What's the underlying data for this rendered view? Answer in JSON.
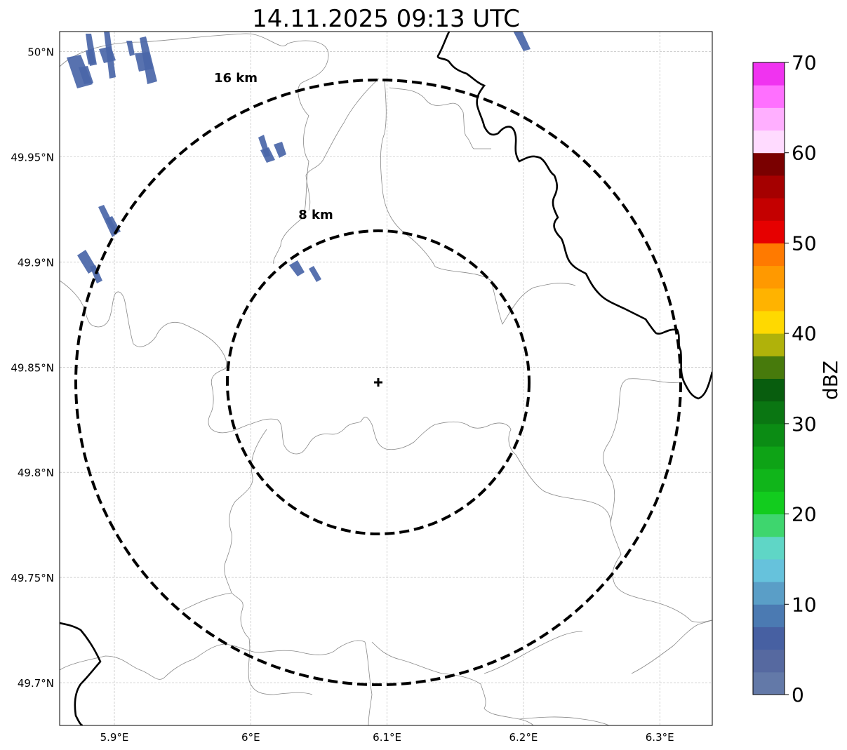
{
  "title": "14.11.2025 09:13 UTC",
  "map": {
    "lon_range": [
      5.86,
      6.34
    ],
    "lat_range": [
      49.68,
      50.01
    ],
    "lon_ticks": [
      5.9,
      6.0,
      6.1,
      6.2,
      6.3
    ],
    "lon_tick_labels": [
      "5.9°E",
      "6°E",
      "6.1°E",
      "6.2°E",
      "6.3°E"
    ],
    "lat_ticks": [
      49.7,
      49.75,
      49.8,
      49.85,
      49.9,
      49.95,
      50.0
    ],
    "lat_tick_labels": [
      "49.7°N",
      "49.75°N",
      "49.8°N",
      "49.85°N",
      "49.9°N",
      "49.95°N",
      "50°N"
    ],
    "gridlines": true,
    "radar_site": {
      "lon": 6.095,
      "lat": 49.843
    },
    "range_rings": [
      {
        "label": "8 km",
        "radius_km": 8
      },
      {
        "label": "16 km",
        "radius_km": 16
      }
    ]
  },
  "colorbar": {
    "label": "dBZ",
    "min": 0,
    "max": 70,
    "tick_labels": [
      "0",
      "10",
      "20",
      "30",
      "40",
      "50",
      "60",
      "70"
    ],
    "colors": [
      "#6379a8",
      "#5669a0",
      "#4760a2",
      "#4b7ab2",
      "#5a9ec7",
      "#66c2dc",
      "#5fd6c6",
      "#3ed66e",
      "#12cc1e",
      "#10b51a",
      "#0ea316",
      "#0b8c14",
      "#0a7612",
      "#085d0e",
      "#477a0c",
      "#b0b20a",
      "#ffd900",
      "#ffb300",
      "#ff9900",
      "#ff7a00",
      "#e60000",
      "#c40000",
      "#a50000",
      "#7a0000",
      "#ffdbff",
      "#ffafff",
      "#ff70ff",
      "#f033f0"
    ]
  },
  "echoes_color": "#4a66a8"
}
